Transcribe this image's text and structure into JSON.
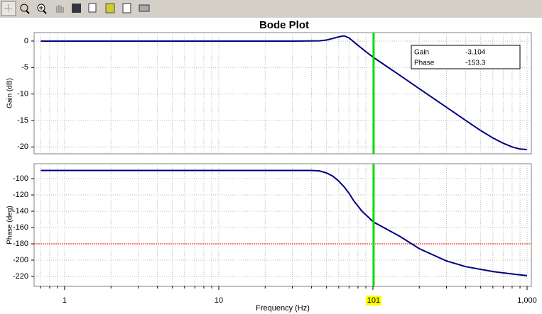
{
  "chart_data": [
    {
      "type": "line",
      "title": "Bode Plot",
      "ylabel": "Gain (dB)",
      "x": [
        0.7,
        1,
        10,
        30,
        45,
        50,
        55,
        60,
        65,
        70,
        80,
        90,
        101,
        150,
        200,
        300,
        400,
        500,
        600,
        700,
        800,
        900,
        1000
      ],
      "series": [
        {
          "color": "#000080",
          "values": [
            0,
            0,
            0,
            0,
            0.05,
            0.2,
            0.5,
            0.8,
            1.0,
            0.6,
            -0.8,
            -2.0,
            -3.104,
            -6.5,
            -9.0,
            -12.5,
            -15.0,
            -16.9,
            -18.3,
            -19.3,
            -20.0,
            -20.4,
            -20.5
          ]
        }
      ],
      "xscale": "log",
      "xlim": [
        0.634,
        1066
      ],
      "xticks": [
        1,
        10,
        100,
        {
          "value": 1000,
          "label": "1,000"
        }
      ],
      "x_minor_ticks": [
        0.7,
        0.8,
        0.9,
        2,
        3,
        4,
        5,
        6,
        7,
        8,
        9,
        20,
        30,
        40,
        50,
        60,
        70,
        80,
        90,
        200,
        300,
        400,
        500,
        600,
        700,
        800,
        900
      ],
      "show_xtick_labels": false,
      "ylim": [
        -21.3,
        1.6
      ],
      "yticks": [
        0,
        -5,
        -10,
        -15,
        -20
      ],
      "grid": true
    },
    {
      "type": "line",
      "ylabel": "Phase (deg)",
      "xlabel": "Frequency (Hz)",
      "x": [
        0.7,
        10,
        40,
        45,
        50,
        55,
        60,
        65,
        70,
        75,
        85,
        101,
        150,
        200,
        300,
        400,
        600,
        800,
        1000
      ],
      "series": [
        {
          "color": "#000080",
          "values": [
            -90,
            -90,
            -90,
            -90.5,
            -93,
            -97,
            -103,
            -110,
            -118,
            -127,
            -140,
            -153.3,
            -171,
            -186,
            -201,
            -208,
            -214,
            -217,
            -219
          ]
        }
      ],
      "xscale": "log",
      "xlim": [
        0.634,
        1066
      ],
      "xticks": [
        1,
        10,
        100,
        {
          "value": 1000,
          "label": "1,000"
        }
      ],
      "x_minor_ticks": [
        0.7,
        0.8,
        0.9,
        2,
        3,
        4,
        5,
        6,
        7,
        8,
        9,
        20,
        30,
        40,
        50,
        60,
        70,
        80,
        90,
        200,
        300,
        400,
        500,
        600,
        700,
        800,
        900
      ],
      "show_xtick_labels": true,
      "hidden_xtick_labels": [
        100
      ],
      "ylim": [
        -232.2,
        -81.7
      ],
      "yticks": [
        -100,
        -120,
        -140,
        -160,
        -180,
        -200,
        -220
      ],
      "grid": true,
      "reference_line": -180,
      "reference_color": "#ff0000"
    }
  ],
  "cursor": {
    "x": 101,
    "color": "#00dd00",
    "label_background": "#ffff00",
    "readouts": [
      {
        "label": "Gain",
        "value": -3.104
      },
      {
        "label": "Phase",
        "value": -153.3
      }
    ]
  }
}
